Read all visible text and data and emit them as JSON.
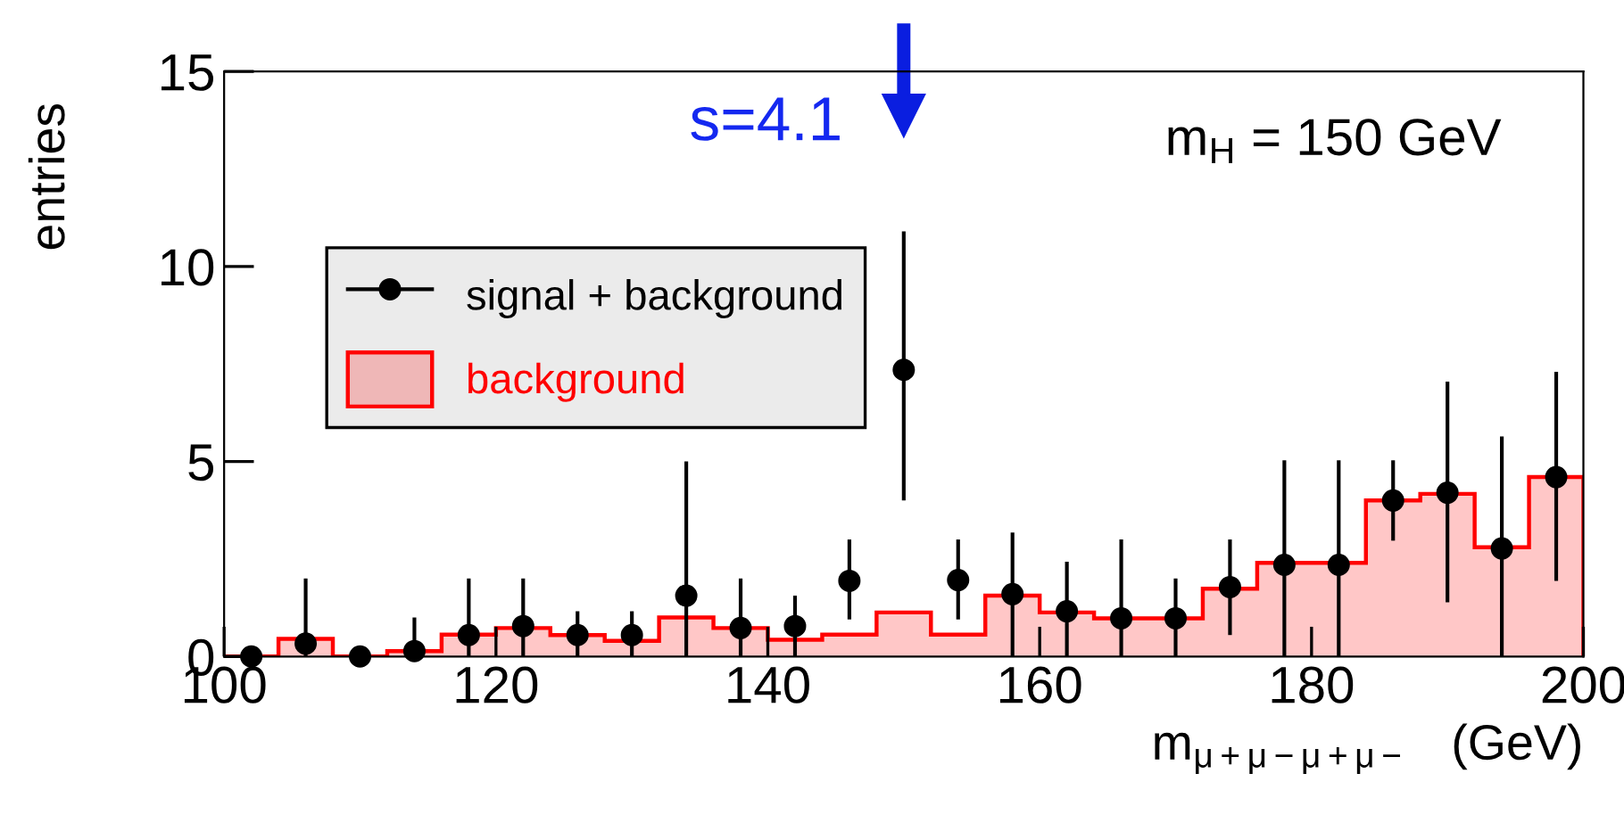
{
  "chart_data": {
    "type": "histogram",
    "xlabel": "m$_{μ+μ−μ+μ−}$   (GeV)",
    "ylabel": "entries",
    "bins": [
      100,
      104,
      108,
      112,
      116,
      120,
      124,
      128,
      132,
      136,
      140,
      144,
      148,
      152,
      156,
      160,
      164,
      168,
      172,
      176,
      180,
      184,
      188,
      192,
      196,
      200
    ],
    "series": [
      {
        "name": "signal + background",
        "type": "scatter",
        "color": "#000000",
        "x": [
          102,
          106,
          110,
          114,
          118,
          122,
          126,
          130,
          134,
          138,
          142,
          146,
          150,
          154,
          158,
          162,
          166,
          170,
          174,
          178,
          182,
          186,
          190,
          194,
          198
        ],
        "values": [
          0,
          0.33,
          0,
          0.14,
          0.55,
          0.78,
          0.55,
          0.55,
          1.56,
          0.73,
          0.78,
          1.94,
          7.35,
          1.96,
          1.6,
          1.16,
          0.98,
          0.98,
          1.78,
          2.35,
          2.35,
          4.0,
          4.2,
          2.77,
          4.6
        ],
        "errors": [
          null,
          [
            0,
            2.0
          ],
          null,
          [
            0,
            1.0
          ],
          [
            0,
            2.0
          ],
          [
            0,
            2.0
          ],
          [
            0,
            1.16
          ],
          [
            0,
            1.16
          ],
          [
            0,
            5.0
          ],
          [
            0,
            2.0
          ],
          [
            0,
            1.56
          ],
          [
            0.95,
            3.0
          ],
          [
            4.0,
            10.9
          ],
          [
            0.95,
            3.0
          ],
          [
            0,
            3.18
          ],
          [
            0,
            2.43
          ],
          [
            0,
            3.0
          ],
          [
            0,
            2.0
          ],
          [
            0.55,
            3.0
          ],
          [
            0,
            5.03
          ],
          [
            0,
            5.03
          ],
          [
            2.97,
            5.03
          ],
          [
            1.39,
            7.05
          ],
          [
            0,
            5.64
          ],
          [
            1.94,
            7.3
          ]
        ]
      },
      {
        "name": "background",
        "type": "histogram",
        "color": "#ff0000",
        "values": [
          0,
          0.45,
          0,
          0.14,
          0.56,
          0.73,
          0.55,
          0.4,
          1.0,
          0.73,
          0.43,
          0.56,
          1.13,
          0.56,
          1.56,
          1.13,
          0.98,
          0.98,
          1.74,
          2.4,
          2.4,
          4.0,
          4.17,
          2.8,
          4.6
        ]
      }
    ],
    "annotations": [
      "s=4.1",
      "m$_{H}$ = 150 GeV"
    ],
    "xlim": [
      100,
      200
    ],
    "ylim": [
      0,
      15
    ],
    "xticks": [
      100,
      120,
      140,
      160,
      180,
      200
    ],
    "yticks": [
      0,
      5,
      10,
      15
    ],
    "legend": "left",
    "marker": "circle",
    "grid": false
  }
}
